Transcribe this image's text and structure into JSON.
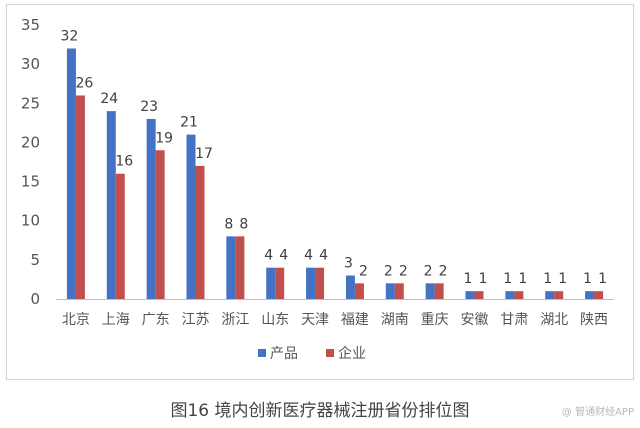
{
  "chart_data": {
    "type": "bar",
    "categories": [
      "北京",
      "上海",
      "广东",
      "江苏",
      "浙江",
      "山东",
      "天津",
      "福建",
      "湖南",
      "重庆",
      "安徽",
      "甘肃",
      "湖北",
      "陕西"
    ],
    "series": [
      {
        "name": "产品",
        "values": [
          32,
          24,
          23,
          21,
          8,
          4,
          4,
          3,
          2,
          2,
          1,
          1,
          1,
          1
        ],
        "color": "#4472c4"
      },
      {
        "name": "企业",
        "values": [
          26,
          16,
          19,
          17,
          8,
          4,
          4,
          2,
          2,
          2,
          1,
          1,
          1,
          1
        ],
        "color": "#c0504d"
      }
    ],
    "yticks": [
      "0",
      "5",
      "10",
      "15",
      "20",
      "25",
      "30",
      "35"
    ],
    "ylim": [
      0,
      35
    ],
    "grid": false,
    "legend_position": "bottom",
    "data_labels": true
  },
  "caption": "图16 境内创新医疗器械注册省份排位图",
  "watermark": "@ 智通财经APP"
}
